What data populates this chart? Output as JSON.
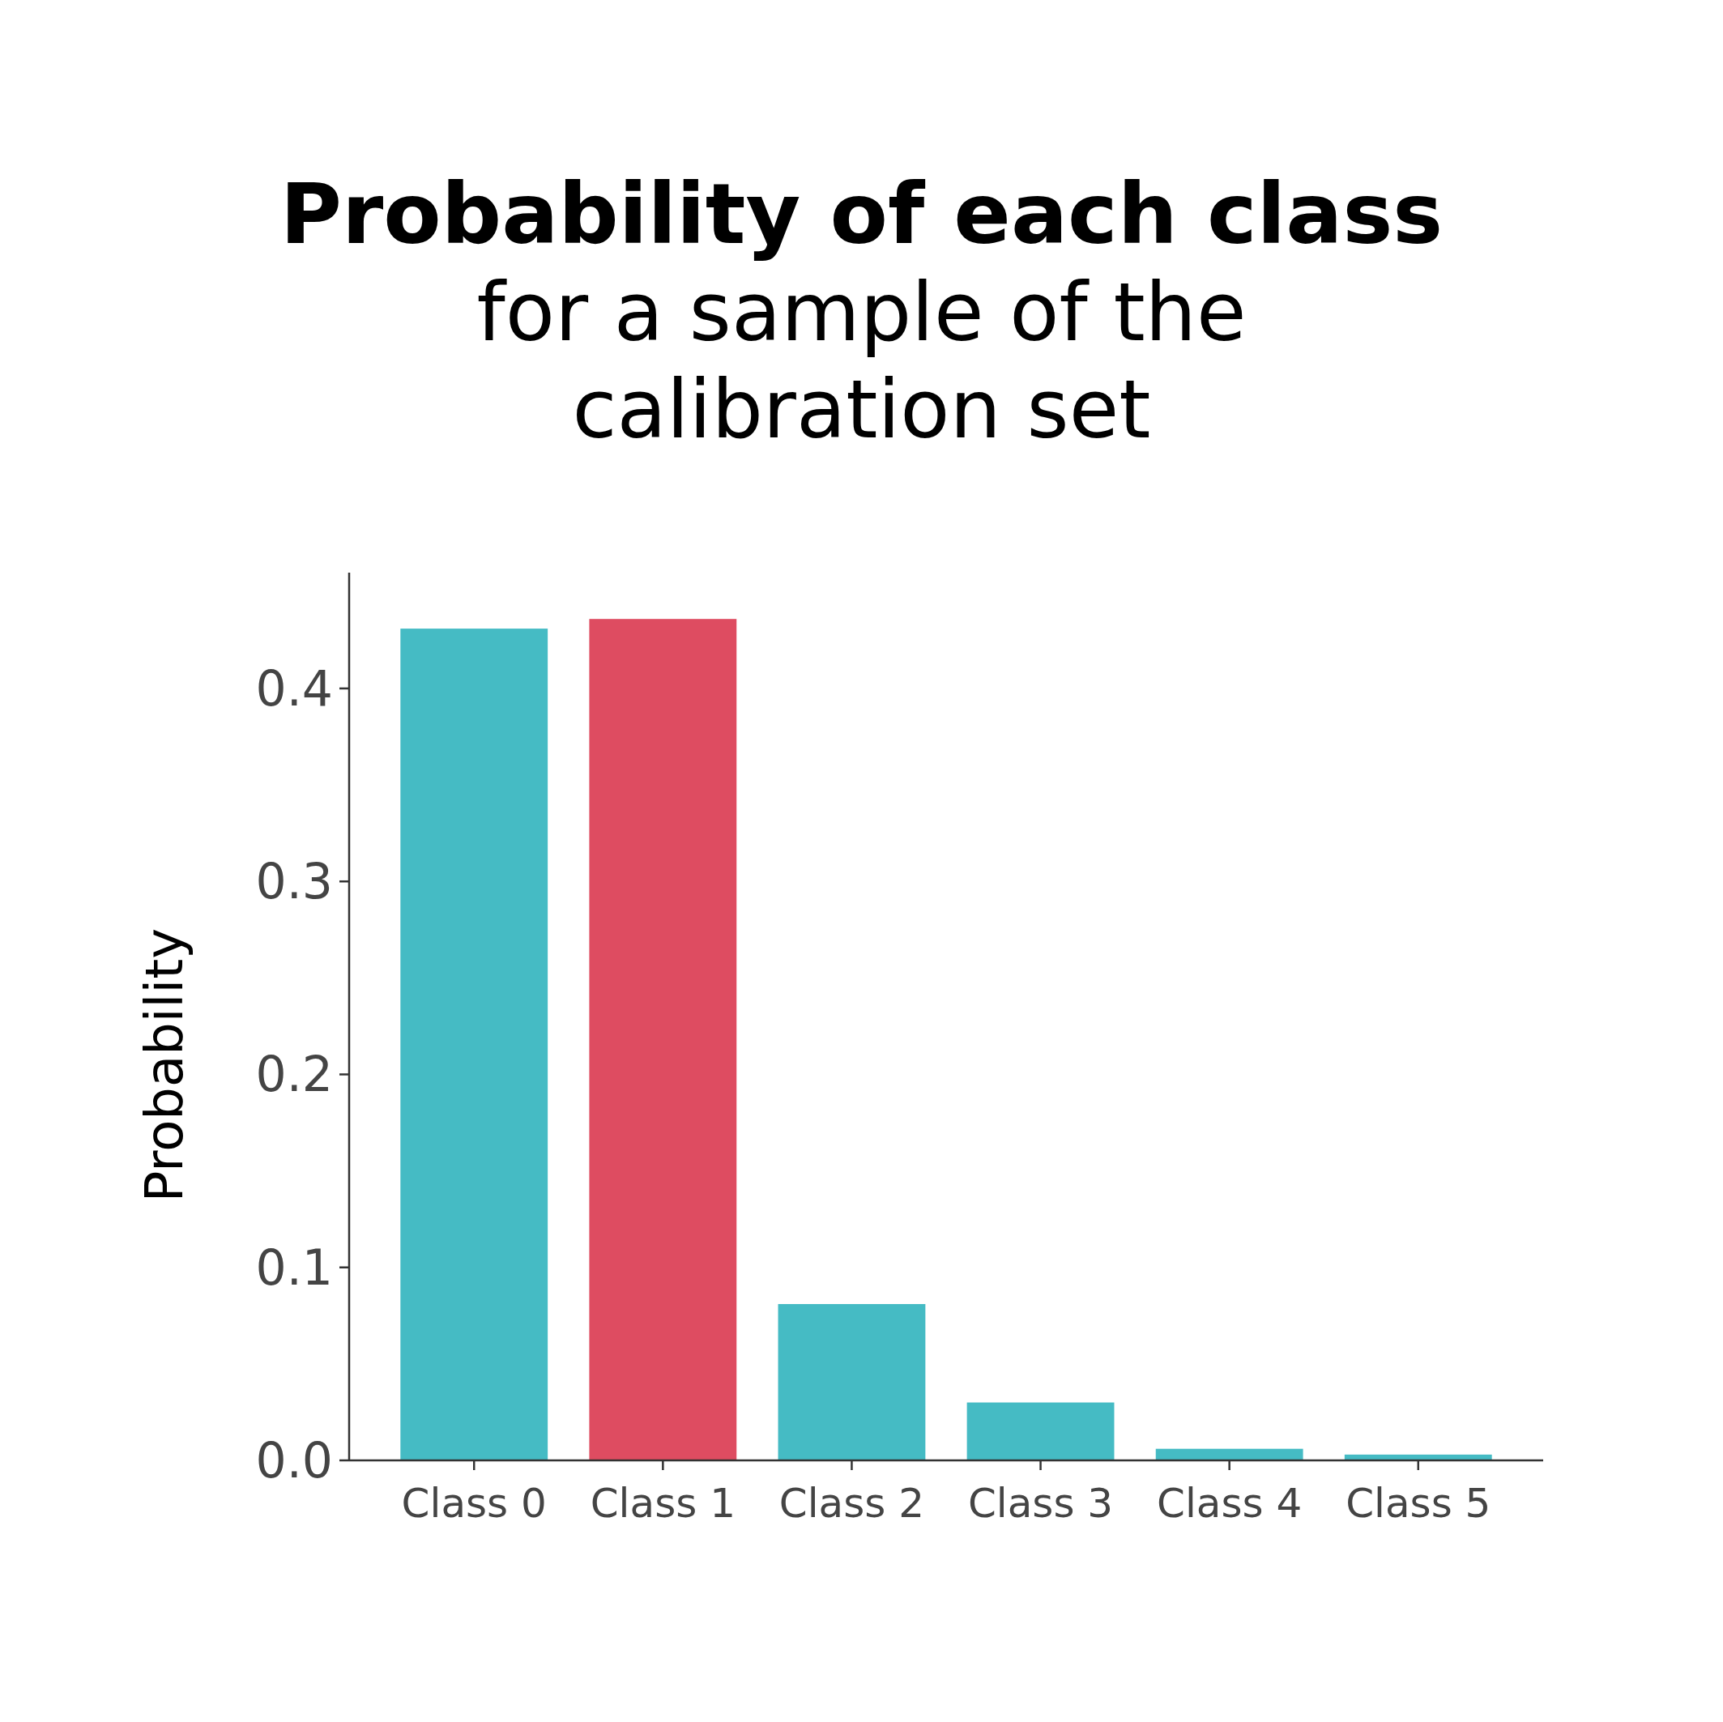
{
  "chart_data": {
    "type": "bar",
    "title": "Probability of each class",
    "subtitle": "for a sample of the calibration set",
    "ylabel": "Probability",
    "categories": [
      "Class 0",
      "Class 1",
      "Class 2",
      "Class 3",
      "Class 4",
      "Class 5"
    ],
    "values": [
      0.431,
      0.436,
      0.081,
      0.03,
      0.006,
      0.003
    ],
    "colors": [
      "#45bbc4",
      "#de4c61",
      "#45bbc4",
      "#45bbc4",
      "#45bbc4",
      "#45bbc4"
    ],
    "ylim": [
      0,
      0.46
    ],
    "yticks": [
      {
        "value": 0,
        "label": "0.0"
      },
      0.1,
      0.2,
      0.3,
      0.4
    ],
    "grid": false
  }
}
